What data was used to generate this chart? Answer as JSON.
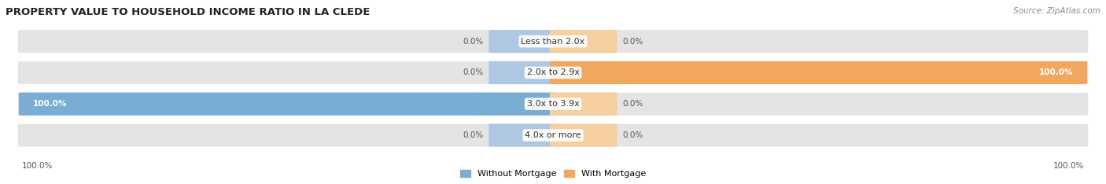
{
  "title": "PROPERTY VALUE TO HOUSEHOLD INCOME RATIO IN LA CLEDE",
  "source": "Source: ZipAtlas.com",
  "categories": [
    "Less than 2.0x",
    "2.0x to 2.9x",
    "3.0x to 3.9x",
    "4.0x or more"
  ],
  "without_mortgage": [
    0.0,
    0.0,
    100.0,
    0.0
  ],
  "with_mortgage": [
    0.0,
    100.0,
    0.0,
    0.0
  ],
  "color_without": "#7aadd4",
  "color_with": "#f0a860",
  "color_without_light": "#aec8e4",
  "color_with_light": "#f5cfa0",
  "bar_bg": "#e4e4e4",
  "figsize": [
    14.06,
    2.34
  ],
  "dpi": 100
}
